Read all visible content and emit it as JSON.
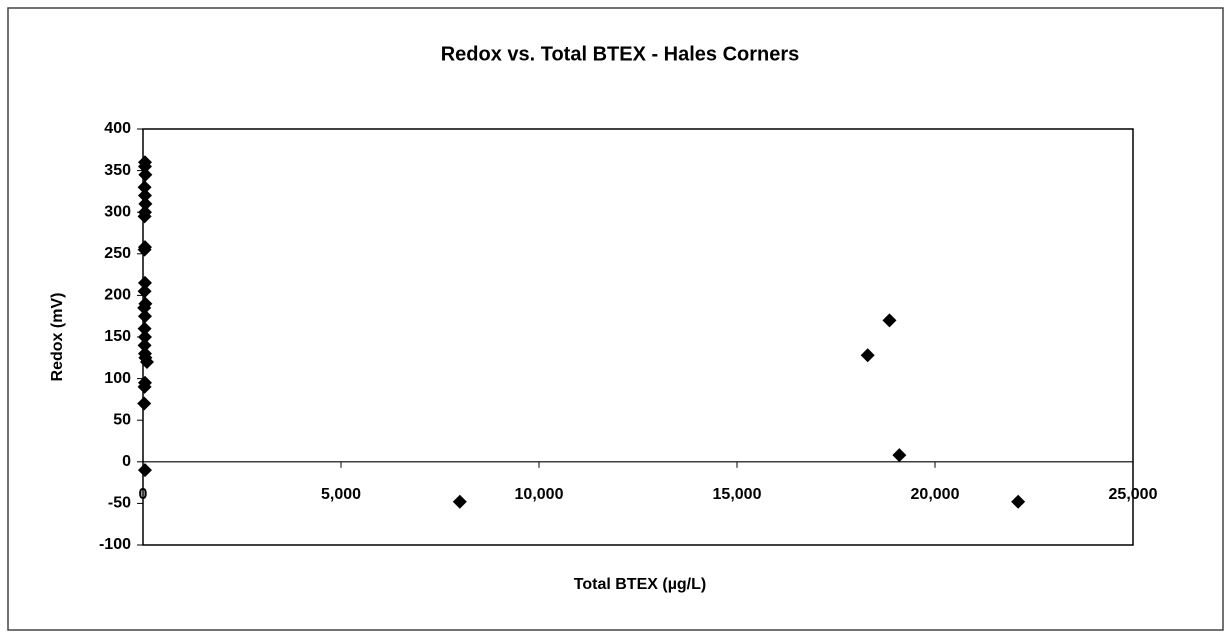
{
  "chart_data": {
    "type": "scatter",
    "title": "Redox vs. Total BTEX - Hales Corners",
    "x_label": "Total BTEX (µg/L)",
    "y_label": "Redox (mV)",
    "series": [
      {
        "name": "Redox",
        "color": "#000000",
        "x": [
          50,
          50,
          60,
          40,
          50,
          60,
          50,
          40,
          50,
          40,
          50,
          40,
          60,
          30,
          50,
          40,
          50,
          40,
          50,
          60,
          100,
          50,
          40,
          30,
          50,
          8000,
          18300,
          18850,
          19100,
          22100
        ],
        "values": [
          360,
          355,
          345,
          330,
          320,
          310,
          300,
          295,
          258,
          255,
          215,
          205,
          190,
          185,
          175,
          160,
          150,
          140,
          130,
          125,
          120,
          95,
          90,
          70,
          -10,
          -48,
          128,
          170,
          8,
          -48
        ]
      }
    ],
    "xlim": [
      0,
      25000
    ],
    "xticks": [
      0,
      {
        "value": 5000,
        "label": "5,000"
      },
      {
        "value": 10000,
        "label": "10,000"
      },
      {
        "value": 15000,
        "label": "15,000"
      },
      {
        "value": 20000,
        "label": "20,000"
      },
      {
        "value": 25000,
        "label": "25,000"
      }
    ],
    "ylim": [
      -100,
      400
    ],
    "yticks": [
      -100,
      -50,
      0,
      50,
      100,
      150,
      200,
      250,
      300,
      350,
      400
    ],
    "grid": false
  }
}
